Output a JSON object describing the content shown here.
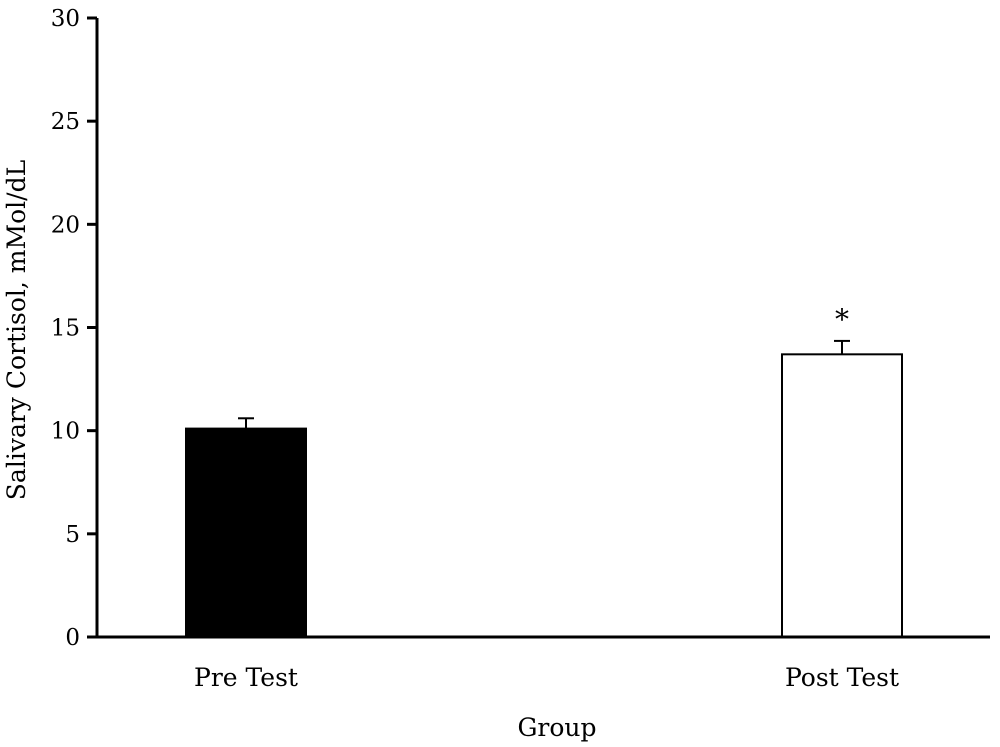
{
  "chart_data": {
    "type": "bar",
    "title": "",
    "xlabel": "Group",
    "ylabel": "Salivary Cortisol, mMol/dL",
    "ylim": [
      0,
      30
    ],
    "yticks": [
      0,
      5,
      10,
      15,
      20,
      25,
      30
    ],
    "grid": false,
    "categories": [
      "Pre Test",
      "Post Test"
    ],
    "values": [
      10.1,
      13.7
    ],
    "errors": [
      0.5,
      0.65
    ],
    "bar_colors": [
      "#000000",
      "#ffffff"
    ],
    "annotations": [
      {
        "category": "Post Test",
        "text": "*"
      }
    ]
  }
}
